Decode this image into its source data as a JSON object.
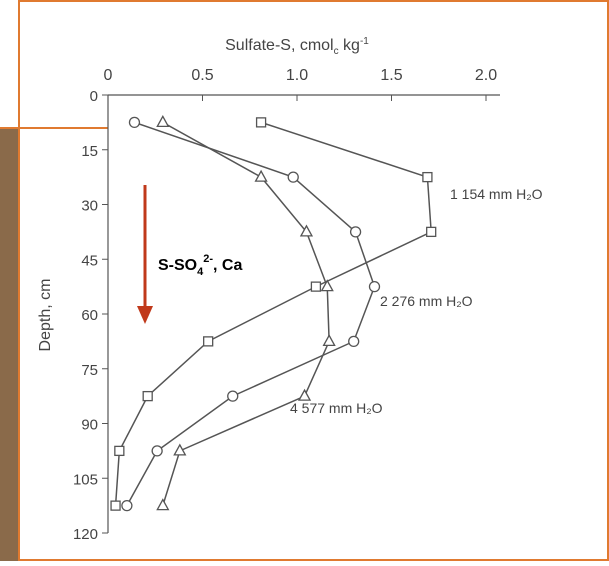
{
  "chart_data": {
    "type": "line",
    "x_label": [
      "Sulfate-S, cmol",
      "c",
      " kg",
      "-1"
    ],
    "y_label": "Depth, cm",
    "xlim": [
      0,
      2.0
    ],
    "xticks": [
      0,
      0.5,
      {
        "value": 1,
        "label": "1.0"
      },
      1.5,
      {
        "value": 2,
        "label": "2.0"
      }
    ],
    "ylim": [
      0,
      120
    ],
    "yticks": [
      0,
      15,
      30,
      45,
      60,
      75,
      90,
      105,
      120
    ],
    "y_inverted": true,
    "color": "#555555",
    "series": [
      {
        "name": "1 154 mm H₂O",
        "marker": "square",
        "x": [
          0.81,
          1.69,
          1.71,
          1.1,
          0.53,
          0.21,
          0.06,
          0.04
        ],
        "y": [
          7.5,
          22.5,
          37.5,
          52.5,
          67.5,
          82.5,
          97.5,
          112.5
        ]
      },
      {
        "name": "2 276 mm H₂O",
        "marker": "circle",
        "x": [
          0.14,
          0.98,
          1.31,
          1.41,
          1.3,
          0.66,
          0.26,
          0.1
        ],
        "y": [
          7.5,
          22.5,
          37.5,
          52.5,
          67.5,
          82.5,
          97.5,
          112.5
        ]
      },
      {
        "name": "4 577 mm H₂O",
        "marker": "triangle",
        "x": [
          0.29,
          0.81,
          1.05,
          1.16,
          1.17,
          1.04,
          0.38,
          0.29
        ],
        "y": [
          7.5,
          22.5,
          37.5,
          52.5,
          67.5,
          82.5,
          97.5,
          112.5
        ]
      }
    ],
    "annotation": {
      "text": [
        "S-SO",
        "4",
        "2-",
        ", Ca"
      ],
      "color": "#c0391b"
    }
  }
}
